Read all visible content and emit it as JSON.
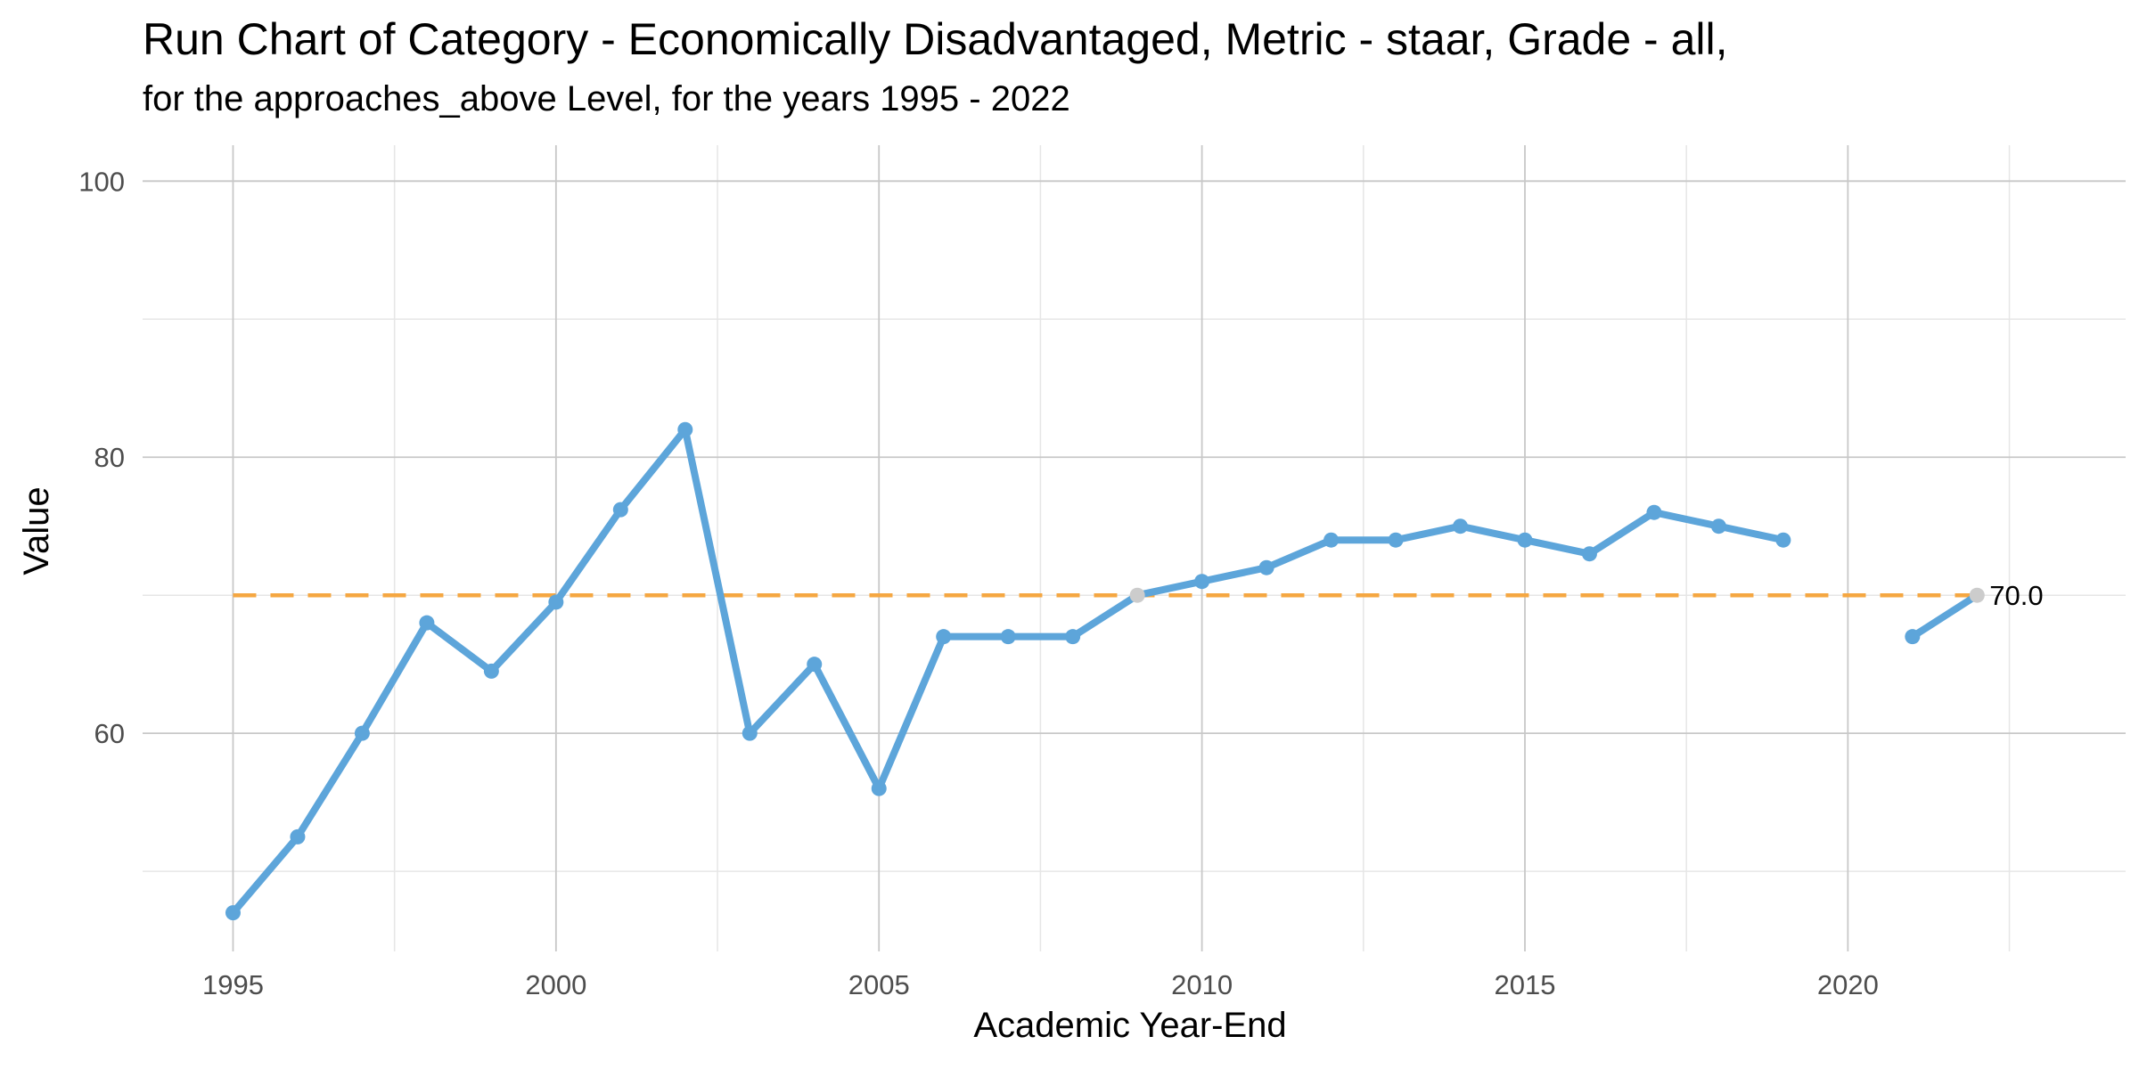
{
  "chart_data": {
    "type": "line",
    "title": "Run Chart of Category - Economically Disadvantaged, Metric - staar, Grade - all,",
    "subtitle": "for the approaches_above Level, for the years 1995 - 2022",
    "xlabel": "Academic Year-End",
    "ylabel": "Value",
    "xlim": [
      1993.6,
      2024.3
    ],
    "ylim": [
      44.2,
      102.6
    ],
    "x_ticks": [
      1995,
      2000,
      2005,
      2010,
      2015,
      2020
    ],
    "x_tick_labels": [
      "1995",
      "2000",
      "2005",
      "2010",
      "2015",
      "2020"
    ],
    "y_ticks": [
      60,
      80,
      100
    ],
    "y_tick_labels": [
      "60",
      "80",
      "100"
    ],
    "grid": true,
    "series": [
      {
        "color": "#5DA5DA",
        "x": [
          1995,
          1996,
          1997,
          1998,
          1999,
          2000,
          2001,
          2002,
          2003,
          2004,
          2005,
          2006,
          2007,
          2008,
          2009,
          2010,
          2011,
          2012,
          2013,
          2014,
          2015,
          2016,
          2017,
          2018,
          2019,
          2020,
          2021,
          2022
        ],
        "y": [
          47,
          52.5,
          60,
          68,
          64.5,
          69.5,
          76.2,
          82,
          60,
          65,
          56,
          67,
          67,
          67,
          70,
          71,
          72,
          74,
          74,
          75,
          74,
          73,
          76,
          75,
          74,
          null,
          67,
          70
        ],
        "highlight_points": [
          {
            "x": 2009,
            "y": 70,
            "color": "#CCCCCC"
          },
          {
            "x": 2022,
            "y": 70,
            "color": "#CCCCCC"
          }
        ]
      }
    ],
    "reference_line": {
      "y": 70,
      "color": "#F5A742",
      "style": "dashed",
      "x_range": [
        1995,
        2022
      ]
    },
    "end_label": {
      "x": 2022,
      "y": 70,
      "text": "70.0"
    }
  }
}
